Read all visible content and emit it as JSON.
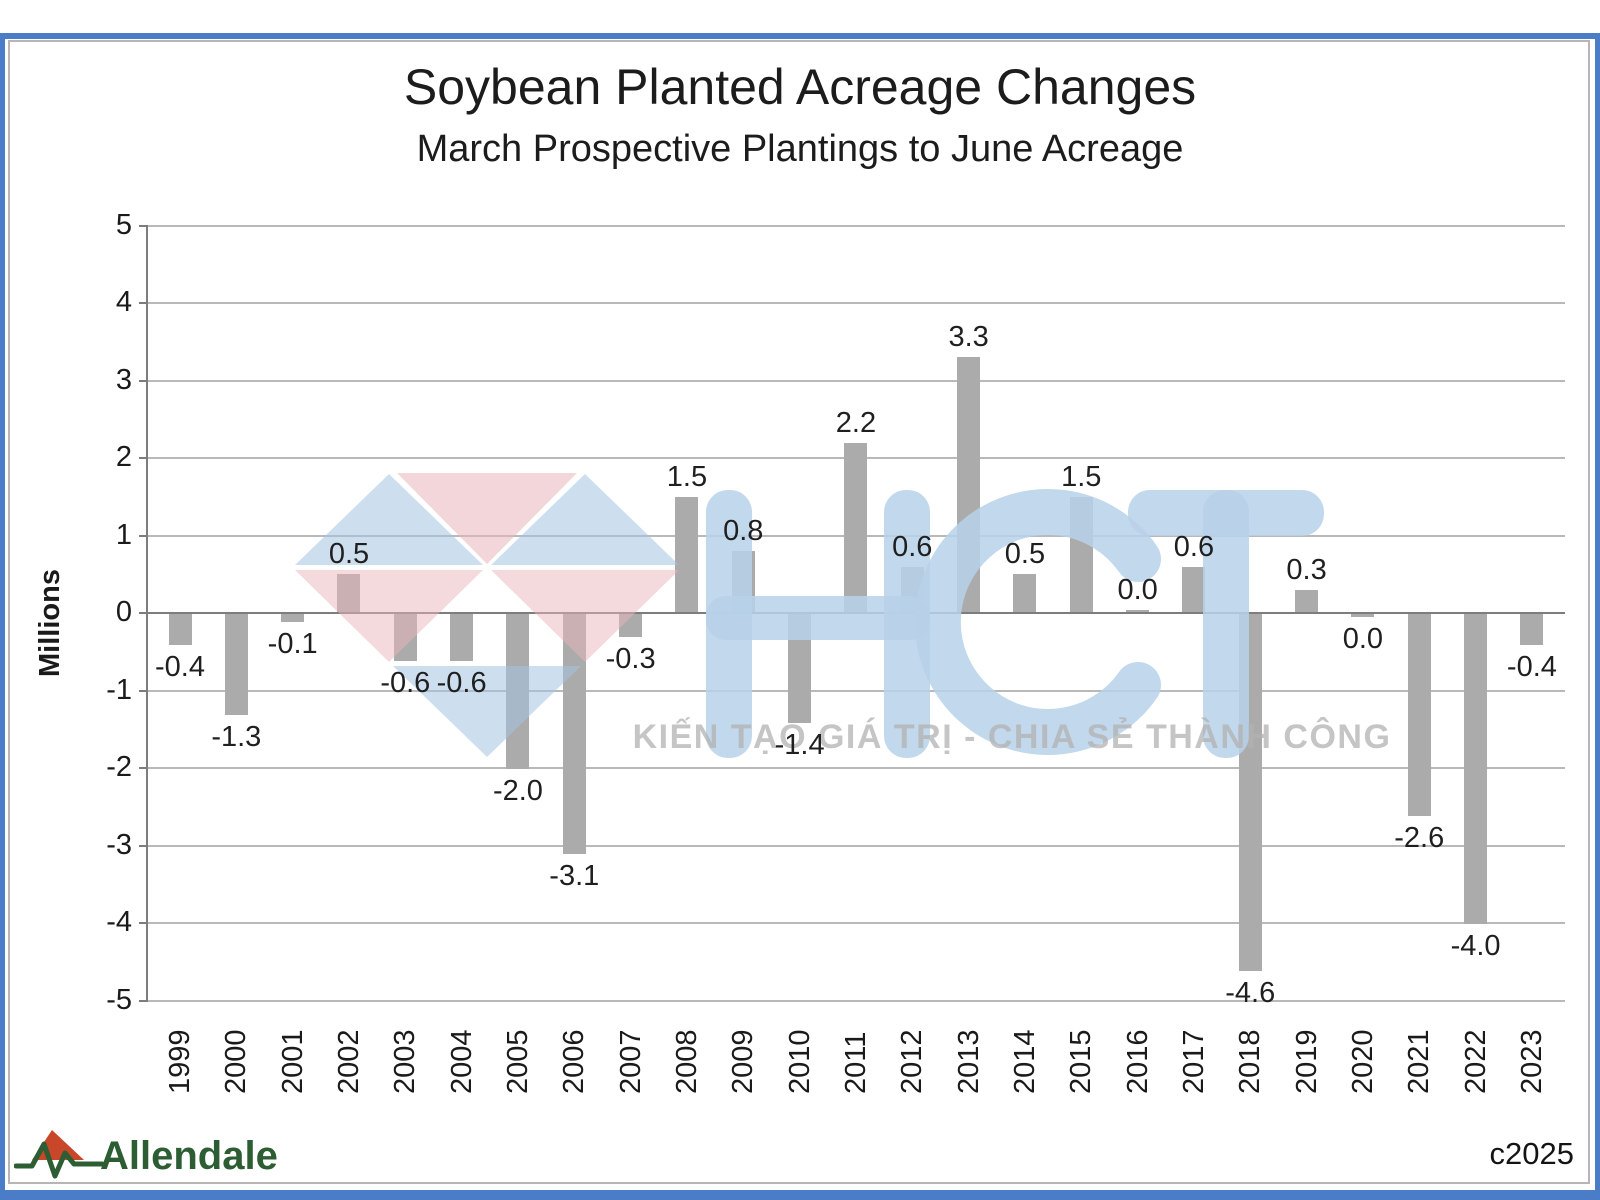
{
  "header": {
    "title": "Soybean Planted Acreage Changes",
    "subtitle": "March Prospective Plantings to June Acreage"
  },
  "chart_data": {
    "type": "bar",
    "title": "Soybean Planted Acreage Changes",
    "subtitle": "March Prospective Plantings to June Acreage",
    "ylabel": "Millions",
    "xlabel": "",
    "ylim": [
      -5,
      5
    ],
    "ytick_interval": 1,
    "yticks": [
      "5",
      "4",
      "3",
      "2",
      "1",
      "0",
      "-1",
      "-2",
      "-3",
      "-4",
      "-5"
    ],
    "grid": true,
    "bar_color": "#ababab",
    "categories": [
      "1999",
      "2000",
      "2001",
      "2002",
      "2003",
      "2004",
      "2005",
      "2006",
      "2007",
      "2008",
      "2009",
      "2010",
      "2011",
      "2012",
      "2013",
      "2014",
      "2015",
      "2016",
      "2017",
      "2018",
      "2019",
      "2020",
      "2021",
      "2022",
      "2023"
    ],
    "values": [
      -0.4,
      -1.3,
      -0.1,
      0.5,
      -0.6,
      -0.6,
      -2.0,
      -3.1,
      -0.3,
      1.5,
      0.8,
      -1.4,
      2.2,
      0.6,
      3.3,
      0.5,
      1.5,
      0.0,
      0.6,
      -4.6,
      0.3,
      0.0,
      -2.6,
      -4.0,
      -0.4
    ],
    "labels": [
      "-0.4",
      "-1.3",
      "-0.1",
      "0.5",
      "-0.6",
      "-0.6",
      "-2.0",
      "-3.1",
      "-0.3",
      "1.5",
      "0.8",
      "-1.4",
      "2.2",
      "0.6",
      "3.3",
      "0.5",
      "1.5",
      "0.0",
      "0.6",
      "-4.6",
      "0.3",
      "0.0",
      "-2.6",
      "-4.0",
      "-0.4"
    ],
    "label_positions": [
      "below",
      "below",
      "below",
      "above",
      "below",
      "below",
      "below",
      "below",
      "below",
      "above",
      "above",
      "below",
      "above",
      "above",
      "above",
      "above",
      "above",
      "above",
      "above",
      "below",
      "above",
      "below",
      "below",
      "below",
      "below"
    ]
  },
  "watermark": {
    "letters": "HCT",
    "slogan": "KIẾN TẠO GIÁ TRỊ - CHIA SẺ THÀNH CÔNG",
    "blue": "#b4cfe8",
    "pink": "#e9c3c8"
  },
  "branding": {
    "logo_text": "Allendale",
    "logo_green": "#2c5d33",
    "logo_red": "#c8472b",
    "copyright": "c2025"
  }
}
